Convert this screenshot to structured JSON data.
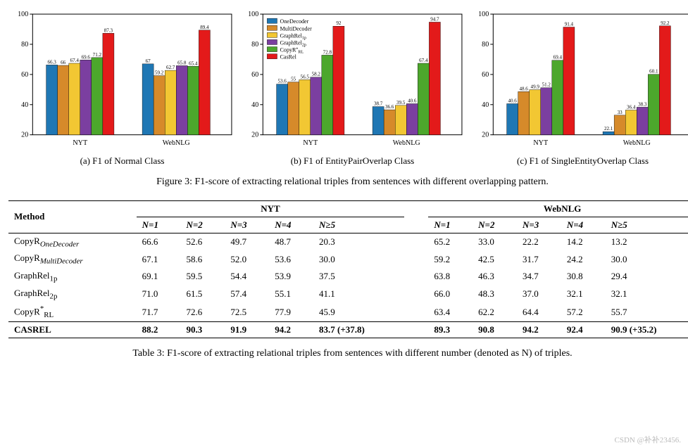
{
  "figure_caption": "Figure 3: F1-score of extracting relational triples from sentences with different overlapping pattern.",
  "table_caption": "Table 3: F1-score of extracting relational triples from sentences with different number (denoted as N) of triples.",
  "watermark": "CSDN @补补23456.",
  "chart_common": {
    "ylim": [
      20,
      100
    ],
    "ytick_step": 20,
    "yticks": [
      20,
      40,
      60,
      80,
      100
    ],
    "groups": [
      "NYT",
      "WebNLG"
    ],
    "bar_width": 0.8,
    "group_gap": 1.2,
    "axis_color": "#000000",
    "grid": false,
    "label_fontsize": 7,
    "tick_fontsize": 10,
    "legend_fontsize": 8
  },
  "series": [
    {
      "name": "OneDecoder",
      "color": "#1f77b4"
    },
    {
      "name": "MultiDecoder",
      "color": "#d68a2a"
    },
    {
      "name": "GraphRel_1p",
      "label_html": "GraphRel<sub>1p</sub>",
      "color": "#f2c733"
    },
    {
      "name": "GraphRel_2p",
      "label_html": "GraphRel<sub>2p</sub>",
      "color": "#7b3fa0"
    },
    {
      "name": "CopyR*_RL",
      "label_html": "CopyR<sup>*</sup><sub>RL</sub>",
      "color": "#4ca72c"
    },
    {
      "name": "CasRel",
      "color": "#e31a1a"
    }
  ],
  "charts": [
    {
      "id": "normal",
      "subcaption": "(a) F1 of Normal Class",
      "show_legend": false,
      "data": {
        "NYT": [
          66.3,
          66.0,
          67.4,
          69.6,
          71.2,
          87.3
        ],
        "WebNLG": [
          67.0,
          59.2,
          62.7,
          65.8,
          65.4,
          89.4
        ]
      }
    },
    {
      "id": "epo",
      "subcaption": "(b) F1 of EntityPairOverlap Class",
      "show_legend": true,
      "data": {
        "NYT": [
          53.6,
          55.0,
          56.5,
          58.2,
          72.8,
          92.0
        ],
        "WebNLG": [
          38.7,
          36.6,
          39.5,
          40.6,
          67.4,
          94.7
        ]
      }
    },
    {
      "id": "seo",
      "subcaption": "(c) F1 of SingleEntityOverlap Class",
      "show_legend": false,
      "data": {
        "NYT": [
          40.6,
          48.6,
          49.9,
          51.2,
          69.4,
          91.4
        ],
        "WebNLG": [
          22.1,
          33.0,
          36.4,
          38.3,
          60.1,
          92.2
        ]
      }
    }
  ],
  "table": {
    "header_group_left": "NYT",
    "header_group_right": "WebNLG",
    "method_header": "Method",
    "sub_headers": [
      "N=1",
      "N=2",
      "N=3",
      "N=4",
      "N≥5"
    ],
    "rows": [
      {
        "method_html": "CopyR<sub><i>OneDecoder</i></sub>",
        "nyt": [
          "66.6",
          "52.6",
          "49.7",
          "48.7",
          "20.3"
        ],
        "web": [
          "65.2",
          "33.0",
          "22.2",
          "14.2",
          "13.2"
        ],
        "bold": false
      },
      {
        "method_html": "CopyR<sub><i>MultiDecoder</i></sub>",
        "nyt": [
          "67.1",
          "58.6",
          "52.0",
          "53.6",
          "30.0"
        ],
        "web": [
          "59.2",
          "42.5",
          "31.7",
          "24.2",
          "30.0"
        ],
        "bold": false
      },
      {
        "method_html": "GraphRel<sub>1p</sub>",
        "nyt": [
          "69.1",
          "59.5",
          "54.4",
          "53.9",
          "37.5"
        ],
        "web": [
          "63.8",
          "46.3",
          "34.7",
          "30.8",
          "29.4"
        ],
        "bold": false
      },
      {
        "method_html": "GraphRel<sub>2p</sub>",
        "nyt": [
          "71.0",
          "61.5",
          "57.4",
          "55.1",
          "41.1"
        ],
        "web": [
          "66.0",
          "48.3",
          "37.0",
          "32.1",
          "32.1"
        ],
        "bold": false
      },
      {
        "method_html": "CopyR<sup>*</sup><sub>RL</sub>",
        "nyt": [
          "71.7",
          "72.6",
          "72.5",
          "77.9",
          "45.9"
        ],
        "web": [
          "63.4",
          "62.2",
          "64.4",
          "57.2",
          "55.7"
        ],
        "bold": false
      },
      {
        "method_html": "C<span style='font-variant:small-caps'>AS</span>R<span style='font-variant:small-caps'>EL</span>",
        "nyt": [
          "88.2",
          "90.3",
          "91.9",
          "94.2",
          "83.7 (+37.8)"
        ],
        "web": [
          "89.3",
          "90.8",
          "94.2",
          "92.4",
          "90.9 (+35.2)"
        ],
        "bold": true
      }
    ]
  }
}
